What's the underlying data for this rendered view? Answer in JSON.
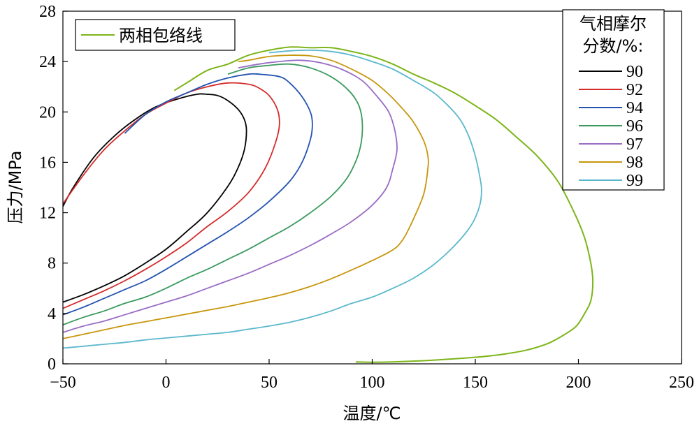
{
  "chart_data": {
    "type": "line",
    "xlabel": "温度/℃",
    "ylabel": "压力/MPa",
    "xlim": [
      -50,
      250
    ],
    "ylim": [
      0,
      28
    ],
    "xticks": [
      -50,
      0,
      50,
      100,
      150,
      200,
      250
    ],
    "yticks": [
      0,
      4,
      8,
      12,
      16,
      20,
      24,
      28
    ],
    "grid": false,
    "envelope_legend": {
      "label": "两相包络线",
      "placement": "top-left"
    },
    "series_legend": {
      "title_line1": "气相摩尔",
      "title_line2": "分数/%:",
      "placement": "top-right"
    },
    "envelope": {
      "name": "两相包络线",
      "color": "#7cb518",
      "points": [
        [
          4,
          21.7
        ],
        [
          10,
          22.3
        ],
        [
          20,
          23.3
        ],
        [
          30,
          23.8
        ],
        [
          40,
          24.5
        ],
        [
          50,
          24.9
        ],
        [
          60,
          25.15
        ],
        [
          70,
          25.1
        ],
        [
          80,
          25.1
        ],
        [
          90,
          24.8
        ],
        [
          100,
          24.4
        ],
        [
          110,
          23.8
        ],
        [
          120,
          23.0
        ],
        [
          130,
          22.3
        ],
        [
          140,
          21.5
        ],
        [
          150,
          20.5
        ],
        [
          160,
          19.4
        ],
        [
          170,
          18.0
        ],
        [
          180,
          16.5
        ],
        [
          190,
          14.5
        ],
        [
          198,
          12.0
        ],
        [
          203,
          10.0
        ],
        [
          206,
          8.0
        ],
        [
          207,
          6.5
        ],
        [
          206,
          5.0
        ],
        [
          203,
          4.0
        ],
        [
          199,
          3.0
        ],
        [
          193,
          2.3
        ],
        [
          185,
          1.6
        ],
        [
          175,
          1.1
        ],
        [
          165,
          0.8
        ],
        [
          155,
          0.6
        ],
        [
          140,
          0.4
        ],
        [
          125,
          0.25
        ],
        [
          110,
          0.15
        ],
        [
          100,
          0.12
        ],
        [
          92,
          0.15
        ]
      ]
    },
    "series": [
      {
        "name": "90",
        "color": "#000000",
        "points": [
          [
            -50,
            4.9
          ],
          [
            -40,
            5.5
          ],
          [
            -30,
            6.2
          ],
          [
            -20,
            7.0
          ],
          [
            -10,
            8.0
          ],
          [
            0,
            9.1
          ],
          [
            10,
            10.5
          ],
          [
            20,
            12.0
          ],
          [
            30,
            14.1
          ],
          [
            35,
            15.6
          ],
          [
            38,
            17.0
          ],
          [
            39,
            18.5
          ],
          [
            38,
            19.4
          ],
          [
            35,
            20.2
          ],
          [
            30,
            20.9
          ],
          [
            25,
            21.3
          ],
          [
            20,
            21.4
          ],
          [
            15,
            21.4
          ],
          [
            5,
            21.0
          ],
          [
            -5,
            20.4
          ],
          [
            -15,
            19.4
          ],
          [
            -25,
            18.1
          ],
          [
            -35,
            16.4
          ],
          [
            -45,
            14.0
          ],
          [
            -50,
            12.5
          ]
        ]
      },
      {
        "name": "92",
        "color": "#d62b2b",
        "points": [
          [
            -50,
            4.4
          ],
          [
            -40,
            5.1
          ],
          [
            -30,
            5.8
          ],
          [
            -20,
            6.6
          ],
          [
            -10,
            7.5
          ],
          [
            0,
            8.5
          ],
          [
            10,
            9.6
          ],
          [
            20,
            10.9
          ],
          [
            30,
            12.1
          ],
          [
            40,
            13.6
          ],
          [
            48,
            15.5
          ],
          [
            53,
            17.5
          ],
          [
            55,
            19.0
          ],
          [
            54,
            20.2
          ],
          [
            50,
            21.3
          ],
          [
            45,
            21.9
          ],
          [
            40,
            22.2
          ],
          [
            30,
            22.3
          ],
          [
            20,
            22.0
          ],
          [
            10,
            21.5
          ],
          [
            0,
            20.7
          ],
          [
            -10,
            19.8
          ],
          [
            -20,
            18.5
          ],
          [
            -30,
            17.0
          ],
          [
            -40,
            15.0
          ],
          [
            -50,
            12.7
          ]
        ]
      },
      {
        "name": "94",
        "color": "#2453b0",
        "points": [
          [
            -50,
            3.9
          ],
          [
            -40,
            4.5
          ],
          [
            -30,
            5.2
          ],
          [
            -20,
            5.9
          ],
          [
            -10,
            6.6
          ],
          [
            0,
            7.5
          ],
          [
            10,
            8.5
          ],
          [
            20,
            9.5
          ],
          [
            30,
            10.5
          ],
          [
            40,
            11.6
          ],
          [
            50,
            12.9
          ],
          [
            60,
            14.5
          ],
          [
            66,
            16.0
          ],
          [
            70,
            17.8
          ],
          [
            71,
            19.0
          ],
          [
            70,
            20.0
          ],
          [
            66,
            21.2
          ],
          [
            60,
            22.3
          ],
          [
            55,
            22.8
          ],
          [
            45,
            23.0
          ],
          [
            40,
            23.0
          ],
          [
            30,
            22.7
          ],
          [
            20,
            22.2
          ],
          [
            10,
            21.5
          ],
          [
            0,
            20.8
          ],
          [
            -10,
            19.8
          ],
          [
            -20,
            18.3
          ]
        ]
      },
      {
        "name": "96",
        "color": "#3a9a5e",
        "points": [
          [
            -50,
            3.1
          ],
          [
            -40,
            3.7
          ],
          [
            -30,
            4.2
          ],
          [
            -20,
            4.8
          ],
          [
            -10,
            5.3
          ],
          [
            0,
            6.0
          ],
          [
            10,
            6.8
          ],
          [
            20,
            7.5
          ],
          [
            30,
            8.3
          ],
          [
            40,
            9.1
          ],
          [
            50,
            10.0
          ],
          [
            60,
            10.9
          ],
          [
            70,
            12.0
          ],
          [
            80,
            13.3
          ],
          [
            88,
            14.8
          ],
          [
            93,
            16.5
          ],
          [
            95,
            18.0
          ],
          [
            95,
            19.5
          ],
          [
            93,
            20.7
          ],
          [
            88,
            21.8
          ],
          [
            80,
            22.8
          ],
          [
            70,
            23.5
          ],
          [
            60,
            23.8
          ],
          [
            50,
            23.7
          ],
          [
            40,
            23.5
          ],
          [
            30,
            23.0
          ]
        ]
      },
      {
        "name": "97",
        "color": "#9a6cc4",
        "points": [
          [
            -50,
            2.5
          ],
          [
            -40,
            3.0
          ],
          [
            -30,
            3.4
          ],
          [
            -20,
            3.9
          ],
          [
            -10,
            4.4
          ],
          [
            0,
            4.9
          ],
          [
            10,
            5.4
          ],
          [
            20,
            6.0
          ],
          [
            30,
            6.6
          ],
          [
            40,
            7.2
          ],
          [
            50,
            7.9
          ],
          [
            60,
            8.6
          ],
          [
            70,
            9.4
          ],
          [
            80,
            10.3
          ],
          [
            90,
            11.3
          ],
          [
            100,
            12.6
          ],
          [
            107,
            14.0
          ],
          [
            110,
            15.5
          ],
          [
            112,
            17.0
          ],
          [
            111,
            18.5
          ],
          [
            108,
            20.0
          ],
          [
            102,
            21.3
          ],
          [
            95,
            22.5
          ],
          [
            85,
            23.4
          ],
          [
            75,
            23.9
          ],
          [
            65,
            24.1
          ],
          [
            55,
            24.0
          ],
          [
            45,
            23.8
          ],
          [
            35,
            23.5
          ]
        ]
      },
      {
        "name": "98",
        "color": "#c8960c",
        "points": [
          [
            -50,
            2.0
          ],
          [
            -40,
            2.35
          ],
          [
            -30,
            2.7
          ],
          [
            -20,
            3.05
          ],
          [
            -10,
            3.35
          ],
          [
            0,
            3.65
          ],
          [
            10,
            3.95
          ],
          [
            20,
            4.25
          ],
          [
            30,
            4.55
          ],
          [
            40,
            4.9
          ],
          [
            50,
            5.25
          ],
          [
            60,
            5.65
          ],
          [
            70,
            6.15
          ],
          [
            80,
            6.75
          ],
          [
            90,
            7.45
          ],
          [
            100,
            8.2
          ],
          [
            110,
            9.05
          ],
          [
            115,
            9.9
          ],
          [
            120,
            11.5
          ],
          [
            125,
            13.5
          ],
          [
            127,
            15.5
          ],
          [
            127,
            16.5
          ],
          [
            125,
            17.7
          ],
          [
            120,
            19.2
          ],
          [
            115,
            20.2
          ],
          [
            108,
            21.4
          ],
          [
            100,
            22.5
          ],
          [
            90,
            23.4
          ],
          [
            80,
            24.1
          ],
          [
            70,
            24.45
          ],
          [
            60,
            24.5
          ],
          [
            50,
            24.4
          ],
          [
            40,
            24.1
          ],
          [
            35,
            24.0
          ]
        ]
      },
      {
        "name": "99",
        "color": "#5bb8cc",
        "points": [
          [
            -50,
            1.25
          ],
          [
            -40,
            1.4
          ],
          [
            -30,
            1.55
          ],
          [
            -20,
            1.7
          ],
          [
            -10,
            1.9
          ],
          [
            0,
            2.05
          ],
          [
            10,
            2.2
          ],
          [
            20,
            2.35
          ],
          [
            30,
            2.5
          ],
          [
            40,
            2.75
          ],
          [
            50,
            3.0
          ],
          [
            60,
            3.3
          ],
          [
            70,
            3.7
          ],
          [
            80,
            4.2
          ],
          [
            90,
            4.8
          ],
          [
            100,
            5.3
          ],
          [
            110,
            6.0
          ],
          [
            120,
            6.8
          ],
          [
            130,
            7.9
          ],
          [
            140,
            9.4
          ],
          [
            148,
            11.0
          ],
          [
            152,
            12.5
          ],
          [
            153,
            13.8
          ],
          [
            152,
            15.0
          ],
          [
            150,
            16.5
          ],
          [
            147,
            18.0
          ],
          [
            143,
            19.3
          ],
          [
            138,
            20.3
          ],
          [
            130,
            21.5
          ],
          [
            120,
            22.5
          ],
          [
            110,
            23.4
          ],
          [
            100,
            24.0
          ],
          [
            90,
            24.5
          ],
          [
            80,
            24.8
          ],
          [
            70,
            24.9
          ],
          [
            60,
            24.85
          ],
          [
            50,
            24.7
          ]
        ]
      }
    ]
  }
}
